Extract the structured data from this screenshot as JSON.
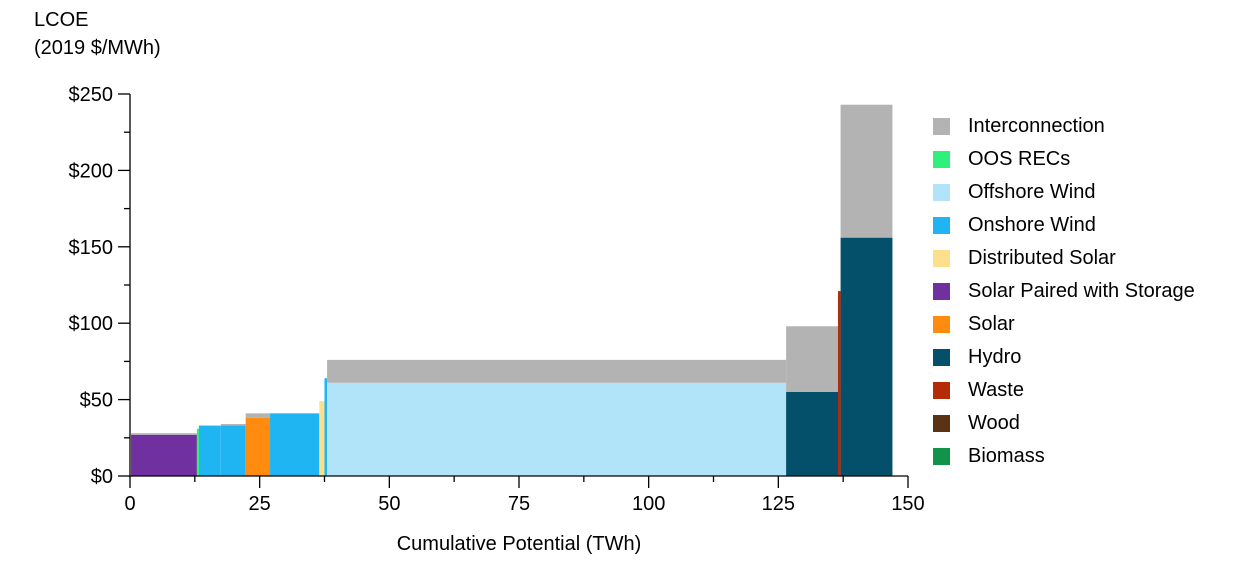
{
  "chart_data": {
    "type": "bar",
    "ylabel_lines": [
      "LCOE",
      "(2019 $/MWh)"
    ],
    "xlabel": "Cumulative Potential (TWh)",
    "xlim": [
      0,
      150
    ],
    "ylim": [
      0,
      250
    ],
    "x_ticks": [
      0,
      25,
      50,
      75,
      100,
      125,
      150
    ],
    "y_ticks": [
      0,
      50,
      100,
      150,
      200,
      250
    ],
    "y_tick_labels": [
      "$0",
      "$50",
      "$100",
      "$150",
      "$200",
      "$250"
    ],
    "legend": [
      {
        "name": "Interconnection",
        "color": "#b3b3b3"
      },
      {
        "name": "OOS RECs",
        "color": "#2ef07a"
      },
      {
        "name": "Offshore Wind",
        "color": "#b1e4f9"
      },
      {
        "name": "Onshore Wind",
        "color": "#1fb4f2"
      },
      {
        "name": "Distributed Solar",
        "color": "#fde08c"
      },
      {
        "name": "Solar Paired with Storage",
        "color": "#7030a0"
      },
      {
        "name": "Solar",
        "color": "#ff8c0f"
      },
      {
        "name": "Hydro",
        "color": "#044f6a"
      },
      {
        "name": "Waste",
        "color": "#b52a0a"
      },
      {
        "name": "Wood",
        "color": "#5a3214"
      },
      {
        "name": "Biomass",
        "color": "#12934a"
      }
    ],
    "blocks": [
      {
        "resource": "Solar Paired with Storage",
        "x_start": 0.2,
        "x_end": 12.9,
        "lcoe": 27,
        "interconnection": 1
      },
      {
        "resource": "OOS RECs",
        "x_start": 12.9,
        "x_end": 13.3,
        "lcoe": 31,
        "interconnection": 0
      },
      {
        "resource": "Onshore Wind",
        "x_start": 13.3,
        "x_end": 17.5,
        "lcoe": 33,
        "interconnection": 0
      },
      {
        "resource": "Onshore Wind",
        "x_start": 17.5,
        "x_end": 22.3,
        "lcoe": 33,
        "interconnection": 1
      },
      {
        "resource": "Solar",
        "x_start": 22.3,
        "x_end": 27.0,
        "lcoe": 38,
        "interconnection": 3
      },
      {
        "resource": "Onshore Wind",
        "x_start": 27.0,
        "x_end": 36.5,
        "lcoe": 41,
        "interconnection": 0
      },
      {
        "resource": "Distributed Solar",
        "x_start": 36.5,
        "x_end": 37.5,
        "lcoe": 49,
        "interconnection": 0
      },
      {
        "resource": "Onshore Wind",
        "x_start": 37.5,
        "x_end": 38.0,
        "lcoe": 64,
        "interconnection": 0
      },
      {
        "resource": "Offshore Wind",
        "x_start": 38.0,
        "x_end": 126.5,
        "lcoe": 61,
        "interconnection": 15
      },
      {
        "resource": "Hydro",
        "x_start": 126.5,
        "x_end": 136.5,
        "lcoe": 55,
        "interconnection": 43
      },
      {
        "resource": "Waste",
        "x_start": 136.5,
        "x_end": 137.0,
        "lcoe": 121,
        "interconnection": 0
      },
      {
        "resource": "Hydro",
        "x_start": 137.0,
        "x_end": 147.0,
        "lcoe": 156,
        "interconnection": 87
      }
    ]
  }
}
